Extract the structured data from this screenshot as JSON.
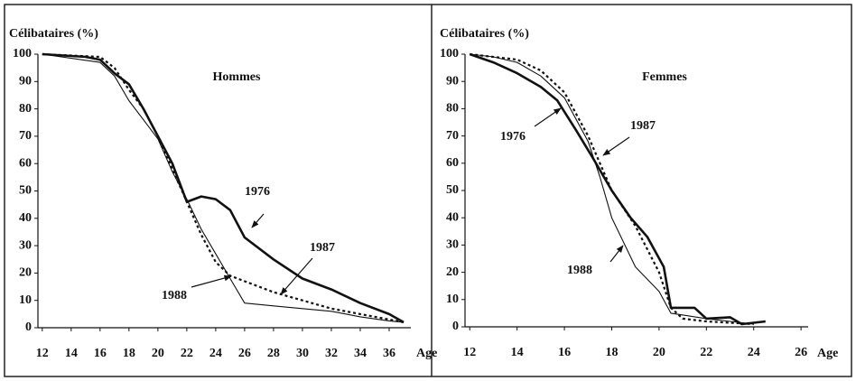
{
  "chart_data": [
    {
      "type": "line",
      "title": "Hommes",
      "y_label": "Célibataires (%)",
      "x_label": "Age",
      "xlim": [
        11.7,
        37.5
      ],
      "ylim": [
        0,
        100
      ],
      "xticks": [
        12,
        14,
        16,
        18,
        20,
        22,
        24,
        26,
        28,
        30,
        32,
        34,
        36
      ],
      "yticks": [
        0,
        10,
        20,
        30,
        40,
        50,
        60,
        70,
        80,
        90,
        100
      ],
      "series": [
        {
          "name": "1976",
          "color": "#111111",
          "line_width": 2.6,
          "dash": "solid",
          "x": [
            12,
            15,
            16,
            17,
            18,
            19,
            20,
            21,
            22,
            23,
            24,
            25,
            26,
            28,
            30,
            32,
            34,
            36,
            37
          ],
          "values": [
            100,
            99,
            98,
            93,
            89,
            80,
            70,
            60,
            46,
            48,
            47,
            43,
            33,
            25,
            18,
            14,
            9,
            5,
            2
          ]
        },
        {
          "name": "1987",
          "color": "#111111",
          "line_width": 2.2,
          "dash": "dotted",
          "x": [
            12,
            16,
            17,
            18,
            19,
            20,
            21,
            22,
            23,
            24,
            25,
            26,
            28,
            30,
            32,
            34,
            36,
            37
          ],
          "values": [
            100,
            99,
            95,
            87,
            80,
            70,
            58,
            46,
            34,
            24,
            19,
            17,
            13,
            10,
            7,
            5,
            3,
            2
          ]
        },
        {
          "name": "1988",
          "color": "#111111",
          "line_width": 1.1,
          "dash": "solid",
          "x": [
            12,
            16,
            17,
            18,
            19,
            20,
            21,
            22,
            23,
            24,
            25,
            26,
            28,
            30,
            32,
            34,
            36,
            37
          ],
          "values": [
            100,
            97,
            92,
            83,
            76,
            69,
            57,
            47,
            36,
            27,
            18,
            9,
            8,
            7,
            6,
            4,
            2.5,
            2
          ]
        }
      ]
    },
    {
      "type": "line",
      "title": "Femmes",
      "y_label": "Célibataires (%)",
      "x_label": "Age",
      "xlim": [
        11.8,
        26.3
      ],
      "ylim": [
        0,
        100
      ],
      "xticks": [
        12,
        14,
        16,
        18,
        20,
        22,
        24,
        26
      ],
      "yticks": [
        0,
        10,
        20,
        30,
        40,
        50,
        60,
        70,
        80,
        90,
        100
      ],
      "series": [
        {
          "name": "1976",
          "color": "#111111",
          "line_width": 2.6,
          "dash": "solid",
          "x": [
            12,
            13,
            14,
            15,
            15.7,
            16.5,
            17.2,
            18,
            18.8,
            19.5,
            20.2,
            20.5,
            21.5,
            22,
            23,
            23.5,
            24.5
          ],
          "values": [
            100,
            97,
            93,
            88,
            83,
            72,
            62,
            50,
            40,
            33,
            22,
            7,
            7,
            3,
            3.5,
            1,
            2
          ]
        },
        {
          "name": "1987",
          "color": "#111111",
          "line_width": 2.2,
          "dash": "dotted",
          "x": [
            12,
            14,
            15,
            16,
            17,
            17.5,
            18,
            19,
            20,
            20.5,
            21,
            22,
            23,
            24
          ],
          "values": [
            100,
            98,
            94,
            86,
            70,
            60,
            50,
            37,
            20,
            7,
            3,
            2,
            1.5,
            1
          ]
        },
        {
          "name": "1988",
          "color": "#111111",
          "line_width": 1.1,
          "dash": "solid",
          "x": [
            12,
            13,
            14,
            15,
            16,
            17,
            17.5,
            18,
            19,
            20,
            20.5,
            22,
            23,
            24
          ],
          "values": [
            100,
            99,
            97,
            92,
            84,
            68,
            55,
            40,
            22,
            13,
            5,
            3,
            2,
            1
          ]
        }
      ]
    }
  ]
}
